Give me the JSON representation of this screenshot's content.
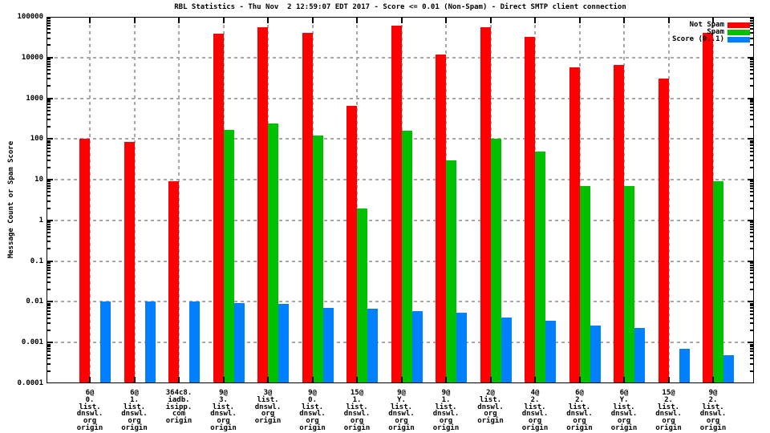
{
  "title": "RBL Statistics - Thu Nov  2 12:59:07 EDT 2017 - Score <= 0.01 (Non-Spam) - Direct SMTP client connection",
  "y_axis": {
    "label": "Message Count or Spam Score",
    "tick_labels": [
      "100000",
      "10000",
      "1000",
      "100",
      "10",
      "1",
      "0.1",
      "0.01",
      "0.001",
      "0.0001"
    ]
  },
  "legend": [
    {
      "label": "Not Spam",
      "color": "#ff0000"
    },
    {
      "label": "Spam",
      "color": "#00c000"
    },
    {
      "label": "Score (0..1)",
      "color": "#0080ff"
    }
  ],
  "colors": {
    "not_spam": "#ff0000",
    "spam": "#00c000",
    "score": "#0080ff",
    "grid": "#a8a8a8",
    "frame": "#000000",
    "background": "#ffffff"
  },
  "chart_data": {
    "type": "bar",
    "scale": "log",
    "ylim": [
      0.0001,
      100000
    ],
    "ylabel": "Message Count or Spam Score",
    "xlabel": "",
    "grid": true,
    "legend_position": "top-right",
    "categories": [
      [
        "6@",
        "0.",
        "list.",
        "dnswl.",
        "org",
        "origin"
      ],
      [
        "6@",
        "1.",
        "list.",
        "dnswl.",
        "org",
        "origin"
      ],
      [
        "364c8.",
        "iadb.",
        "isipp.",
        "com",
        "origin"
      ],
      [
        "9@",
        "3.",
        "list.",
        "dnswl.",
        "org",
        "origin"
      ],
      [
        "3@",
        "list.",
        "dnswl.",
        "org",
        "origin"
      ],
      [
        "9@",
        "0.",
        "list.",
        "dnswl.",
        "org",
        "origin"
      ],
      [
        "15@",
        "1.",
        "list.",
        "dnswl.",
        "org",
        "origin"
      ],
      [
        "9@",
        "Y.",
        "list.",
        "dnswl.",
        "org",
        "origin"
      ],
      [
        "9@",
        "1.",
        "list.",
        "dnswl.",
        "org",
        "origin"
      ],
      [
        "2@",
        "list.",
        "dnswl.",
        "org",
        "origin"
      ],
      [
        "4@",
        "2.",
        "list.",
        "dnswl.",
        "org",
        "origin"
      ],
      [
        "6@",
        "2.",
        "list.",
        "dnswl.",
        "org",
        "origin"
      ],
      [
        "6@",
        "Y.",
        "list.",
        "dnswl.",
        "org",
        "origin"
      ],
      [
        "15@",
        "2.",
        "list.",
        "dnswl.",
        "org",
        "origin"
      ],
      [
        "9@",
        "2.",
        "list.",
        "dnswl.",
        "org",
        "origin"
      ]
    ],
    "series": [
      {
        "name": "Not Spam",
        "color": "#ff0000",
        "values": [
          100,
          85,
          9,
          38000,
          55000,
          40000,
          660,
          60000,
          12000,
          55000,
          32000,
          5800,
          6600,
          3100,
          40000
        ]
      },
      {
        "name": "Spam",
        "color": "#00c000",
        "values": [
          0,
          0,
          0,
          165,
          240,
          120,
          2,
          160,
          30,
          100,
          50,
          7,
          7,
          0,
          9
        ]
      },
      {
        "name": "Score (0..1)",
        "color": "#0080ff",
        "values": [
          0.01,
          0.01,
          0.01,
          0.0095,
          0.009,
          0.0072,
          0.0067,
          0.0058,
          0.0055,
          0.0042,
          0.0035,
          0.0026,
          0.0023,
          0.0007,
          0.0005
        ]
      }
    ]
  }
}
